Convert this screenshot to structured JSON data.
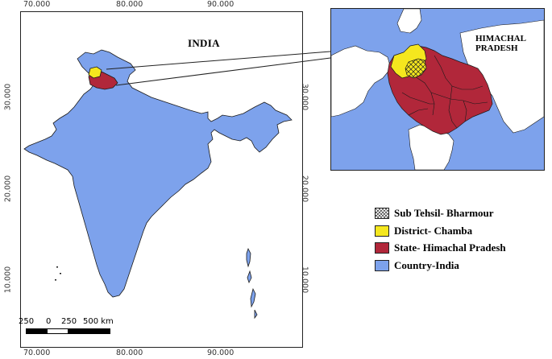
{
  "map": {
    "main_label": "INDIA",
    "inset_label_line1": "HIMACHAL",
    "inset_label_line2": "PRADESH"
  },
  "ticks": {
    "top": [
      "70.000",
      "80.000",
      "90.000"
    ],
    "bottom": [
      "70.000",
      "80.000",
      "90.000"
    ],
    "left": [
      "30.000",
      "20.000",
      "10.000"
    ],
    "right": [
      "30.000",
      "20.000",
      "10.000"
    ]
  },
  "legend": {
    "items": [
      {
        "label": "Sub Tehsil- Bharmour",
        "color": "hatch"
      },
      {
        "label": "District- Chamba",
        "color": "#f5e71e"
      },
      {
        "label": "State- Himachal Pradesh",
        "color": "#b1273a"
      },
      {
        "label": "Country-India",
        "color": "#7da2ec"
      }
    ]
  },
  "scale_bar": {
    "labels": [
      "250",
      "0",
      "250",
      "500 km"
    ]
  },
  "colors": {
    "country": "#7da2ec",
    "state": "#b1273a",
    "district": "#f5e71e"
  }
}
